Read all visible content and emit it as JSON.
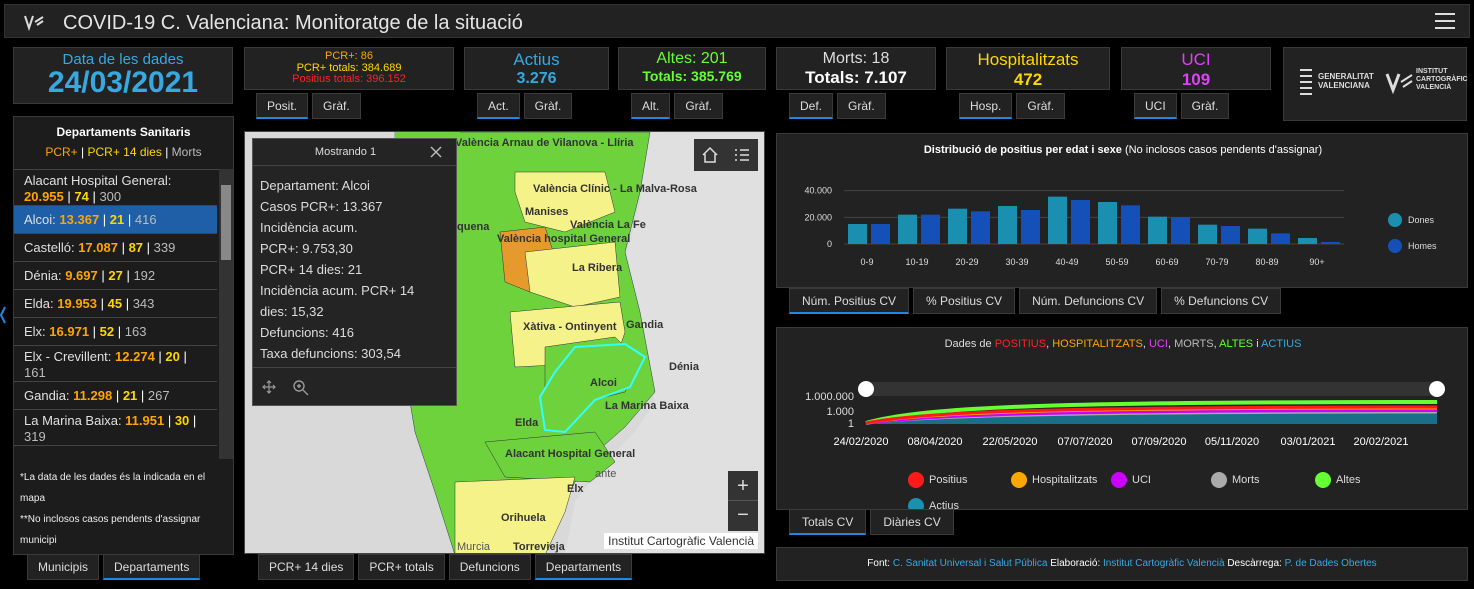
{
  "header": {
    "title": "COVID-19 C. Valenciana: Monitoratge de la situació"
  },
  "date_card": {
    "label": "Data de les dades",
    "value": "24/03/2021"
  },
  "pcr_card": {
    "line1": "PCR+: 86",
    "line2": "PCR+ totals: 384.689",
    "line3": "Positius totals: 396.152"
  },
  "pcr_tabs": [
    "Posit.",
    "Gràf."
  ],
  "actius_card": {
    "label": "Actius",
    "value": "3.276"
  },
  "actius_tabs": [
    "Act.",
    "Gràf."
  ],
  "altes_card": {
    "label": "Altes: 201",
    "value": "Totals: 385.769"
  },
  "altes_tabs": [
    "Alt.",
    "Gràf."
  ],
  "morts_card": {
    "label": "Morts: 18",
    "value": "Totals: 7.107"
  },
  "morts_tabs": [
    "Def.",
    "Gràf."
  ],
  "hosp_card": {
    "label": "Hospitalitzats",
    "value": "472"
  },
  "hosp_tabs": [
    "Hosp.",
    "Gràf."
  ],
  "uci_card": {
    "label": "UCI",
    "value": "109"
  },
  "uci_tabs": [
    "UCI",
    "Gràf."
  ],
  "logos": {
    "gva1": "GENERALITAT",
    "gva2": "VALENCIANA",
    "icv1": "INSTITUT",
    "icv2": "CARTOGRÀFIC",
    "icv3": "VALENCIÀ"
  },
  "dept": {
    "title": "Departaments Sanitaris",
    "legend_pcr": "PCR+",
    "legend_sep1": "|",
    "legend_pcr14": "PCR+ 14 dies",
    "legend_sep2": "|",
    "legend_morts": "Morts",
    "items": [
      {
        "name": "Alacant Hospital General:",
        "pcr": "20.955",
        "pcr14": "74",
        "morts": "300"
      },
      {
        "name": "Alcoi:",
        "pcr": "13.367",
        "pcr14": "21",
        "morts": "416"
      },
      {
        "name": "Castelló:",
        "pcr": "17.087",
        "pcr14": "87",
        "morts": "339"
      },
      {
        "name": "Dénia:",
        "pcr": "9.697",
        "pcr14": "27",
        "morts": "192"
      },
      {
        "name": "Elda:",
        "pcr": "19.953",
        "pcr14": "45",
        "morts": "343"
      },
      {
        "name": "Elx:",
        "pcr": "16.971",
        "pcr14": "52",
        "morts": "163"
      },
      {
        "name": "Elx - Crevillent:",
        "pcr": "12.274",
        "pcr14": "20",
        "morts": "161"
      },
      {
        "name": "Gandia:",
        "pcr": "11.298",
        "pcr14": "21",
        "morts": "267"
      },
      {
        "name": "La Marina Baixa:",
        "pcr": "11.951",
        "pcr14": "30",
        "morts": "319"
      }
    ],
    "note1": "*La data de les dades és la indicada en el mapa",
    "note2": "**No inclosos casos pendents d'assignar municipi"
  },
  "left_tabs": [
    "Municipis",
    "Departaments"
  ],
  "popup": {
    "title": "Mostrando 1",
    "lines": [
      "Departament: Alcoi",
      "Casos PCR+: 13.367",
      "Incidència acum.",
      "PCR+: 9.753,30",
      "PCR+ 14 dies: 21",
      "Incidència acum. PCR+ 14",
      "dies: 15,32",
      "Defuncions: 416",
      "Taxa defuncions: 303,54"
    ]
  },
  "map": {
    "labels": [
      "València Arnau de Vilanova - Llíria",
      "València Clínic - La Malva-Rosa",
      "Manises",
      "València La Fe",
      "quena",
      "València hospital General",
      "La Ribera",
      "Xàtiva - Ontinyent",
      "Gandia",
      "Dénia",
      "Alcoi",
      "La Marina Baixa",
      "Elda",
      "Alacant Hospital General",
      "Elx",
      "ante",
      "Orihuela",
      "Torrevieja",
      "Murcia"
    ],
    "credit": "Institut Cartogràfic Valencià",
    "zoom_in": "+",
    "zoom_out": "−"
  },
  "map_tabs": [
    "PCR+ 14 dies",
    "PCR+ totals",
    "Defuncions",
    "Departaments"
  ],
  "chart_data": [
    {
      "type": "bar",
      "title": "Distribució de positius per edat i sexe",
      "subtitle": "(No inclosos casos pendents d'assignar)",
      "categories": [
        "0-9",
        "10-19",
        "20-29",
        "30-39",
        "40-49",
        "50-59",
        "60-69",
        "70-79",
        "80-89",
        "90+"
      ],
      "yticks": [
        "40.000",
        "20.000",
        "0"
      ],
      "ylim": [
        0,
        45000
      ],
      "series": [
        {
          "name": "Dones",
          "color": "#1a8fb0",
          "values": [
            15000,
            22000,
            26500,
            28500,
            35500,
            31500,
            20500,
            14500,
            11500,
            4500
          ]
        },
        {
          "name": "Homes",
          "color": "#1550b8",
          "values": [
            15000,
            22000,
            24500,
            25500,
            33000,
            29000,
            20000,
            13500,
            8000,
            1500
          ]
        }
      ]
    },
    {
      "type": "line",
      "title_parts": [
        {
          "t": "Dades de ",
          "c": "#ddd"
        },
        {
          "t": "POSITIUS",
          "c": "#ff2222"
        },
        {
          "t": ", ",
          "c": "#ddd"
        },
        {
          "t": "HOSPITALITZATS",
          "c": "#ffa500"
        },
        {
          "t": ", ",
          "c": "#ddd"
        },
        {
          "t": "UCI",
          "c": "#e040fb"
        },
        {
          "t": ", ",
          "c": "#ddd"
        },
        {
          "t": "MORTS",
          "c": "#bbb"
        },
        {
          "t": ", ",
          "c": "#ddd"
        },
        {
          "t": "ALTES",
          "c": "#66ff33"
        },
        {
          "t": " i ",
          "c": "#ddd"
        },
        {
          "t": "ACTIUS",
          "c": "#36a9e1"
        }
      ],
      "yticks": [
        "1.000.000",
        "1.000",
        "1"
      ],
      "xticks": [
        "24/02/2020",
        "08/04/2020",
        "22/05/2020",
        "07/07/2020",
        "07/09/2020",
        "05/11/2020",
        "03/01/2021",
        "20/02/2021"
      ],
      "series": [
        {
          "name": "Positius",
          "color": "#ff1a1a"
        },
        {
          "name": "Hospitalitzats",
          "color": "#ffa500"
        },
        {
          "name": "UCI",
          "color": "#cc00ff"
        },
        {
          "name": "Morts",
          "color": "#aaaaaa"
        },
        {
          "name": "Altes",
          "color": "#66ff33"
        },
        {
          "name": "Actius",
          "color": "#1a8fb0"
        }
      ]
    }
  ],
  "bar_tabs": [
    "Núm. Positius CV",
    "% Positius CV",
    "Núm. Defuncions CV",
    "% Defuncions CV"
  ],
  "line_tabs": [
    "Totals CV",
    "Diàries CV"
  ],
  "footer": {
    "font_lbl": "Font:",
    "font_val": "C. Sanitat Universal i Salut Pública",
    "elab_lbl": "Elaboració:",
    "elab_val": "Institut Cartogràfic Valencià",
    "desc_lbl": "Descàrrega:",
    "desc_val": "P. de Dades Obertes"
  }
}
